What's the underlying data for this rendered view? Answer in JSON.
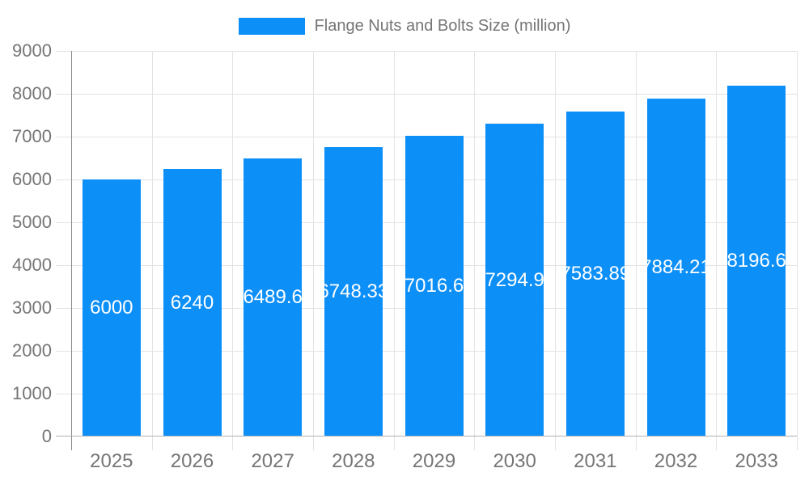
{
  "chart_data": {
    "type": "bar",
    "title": "Flange Nuts and Bolts Size (million)",
    "legend": {
      "label": "Flange Nuts and Bolts Size (million)",
      "position": "top"
    },
    "categories": [
      "2025",
      "2026",
      "2027",
      "2028",
      "2029",
      "2030",
      "2031",
      "2032",
      "2033"
    ],
    "series": [
      {
        "name": "Flange Nuts and Bolts Size (million)",
        "values": [
          6000,
          6240,
          6489.6,
          6748.33,
          7016.6,
          7294.9,
          7583.89,
          7884.21,
          8196.6
        ],
        "value_labels": [
          "6000",
          "6240",
          "6489.6",
          "6748.33",
          "7016.6",
          "7294.9",
          "7583.89",
          "7884.21",
          "8196.6"
        ]
      }
    ],
    "xlabel": "",
    "ylabel": "",
    "ylim": [
      0,
      9000
    ],
    "ytick_step": 1000,
    "yticks": [
      0,
      1000,
      2000,
      3000,
      4000,
      5000,
      6000,
      7000,
      8000,
      9000
    ],
    "grid": true,
    "colors": {
      "bar": "#0d8ff8",
      "grid": "#e3e3e3",
      "y_axis": "#8a8a8a",
      "baseline": "#b0b0b0",
      "tick_text": "#757575",
      "value_text": "#ffffff"
    }
  }
}
